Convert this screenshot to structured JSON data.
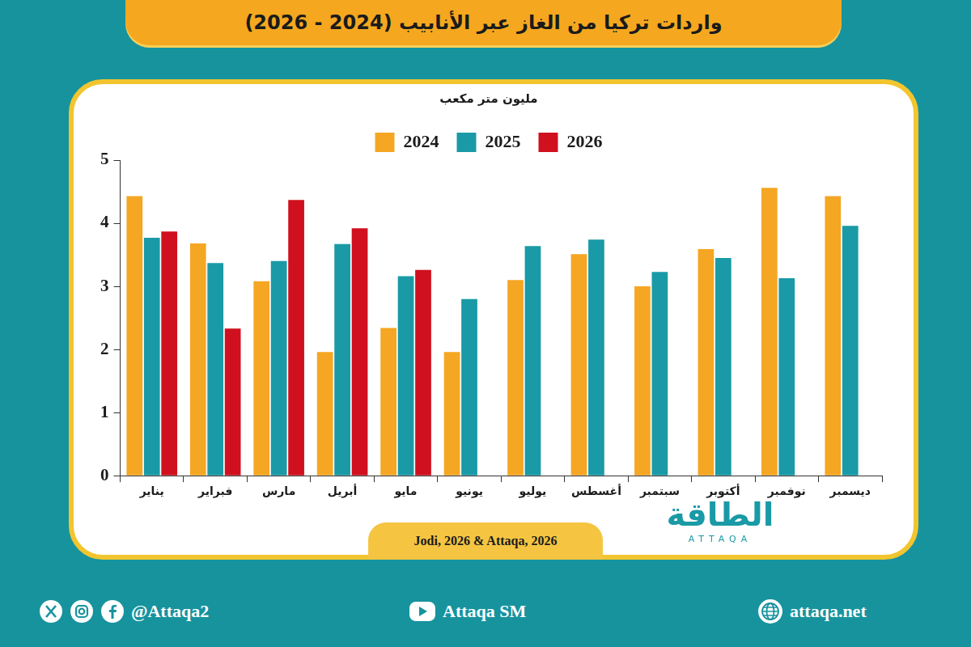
{
  "chart_data": {
    "type": "bar",
    "title": "واردات تركيا من الغاز عبر الأنابيب (2024 - 2026)",
    "subtitle": "مليون متر مكعب",
    "categories": [
      "يناير",
      "فبراير",
      "مارس",
      "أبريل",
      "مايو",
      "يونيو",
      "يوليو",
      "أغسطس",
      "سبتمبر",
      "أكتوبر",
      "نوفمبر",
      "ديسمبر"
    ],
    "series": [
      {
        "name": "2024",
        "color": "#f5a623",
        "values": [
          4.43,
          3.68,
          3.08,
          1.96,
          2.34,
          1.96,
          3.1,
          3.51,
          3.0,
          3.59,
          4.56,
          4.43
        ]
      },
      {
        "name": "2025",
        "color": "#1a9aa6",
        "values": [
          3.77,
          3.37,
          3.4,
          3.67,
          3.16,
          2.8,
          3.64,
          3.74,
          3.23,
          3.45,
          3.13,
          3.96
        ]
      },
      {
        "name": "2026",
        "color": "#d0101e",
        "values": [
          3.87,
          2.33,
          4.37,
          3.92,
          3.26,
          null,
          null,
          null,
          null,
          null,
          null,
          null
        ]
      }
    ],
    "ylim": [
      0,
      5
    ],
    "yticks": [
      0,
      1,
      2,
      3,
      4,
      5
    ],
    "grid": false,
    "legend": "top",
    "source": "Jodi, 2026 & Attaqa, 2026"
  },
  "logo": {
    "name": "الطاقة",
    "latin": "ATTAQA"
  },
  "footer": {
    "social": "@Attaqa2",
    "youtube": "Attaqa SM",
    "website": "attaqa.net"
  }
}
